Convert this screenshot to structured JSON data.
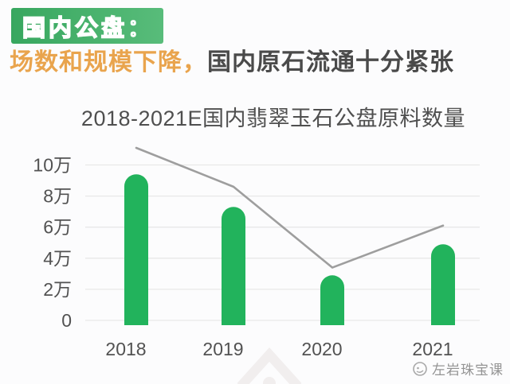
{
  "badge": {
    "label": "国内公盘："
  },
  "headline": {
    "highlight": "场数和规模下降，",
    "rest": "国内原石流通十分紧张",
    "highlight_color": "#e9a44d",
    "rest_color": "#4a4a4a"
  },
  "chart_data": {
    "type": "bar",
    "title": "2018-2021E国内翡翠玉石公盘原料数量",
    "categories": [
      "2018",
      "2019",
      "2020",
      "2021"
    ],
    "series": [
      {
        "name": "bars",
        "type": "bar",
        "values": [
          9.4,
          7.3,
          2.9,
          4.9
        ],
        "unit": "万"
      },
      {
        "name": "trend-line",
        "type": "line",
        "values": [
          11.1,
          8.6,
          3.4,
          6.1
        ],
        "unit": "万"
      }
    ],
    "yticks": [
      {
        "v": 0,
        "label": "0"
      },
      {
        "v": 2,
        "label": "2万"
      },
      {
        "v": 4,
        "label": "4万"
      },
      {
        "v": 6,
        "label": "6万"
      },
      {
        "v": 8,
        "label": "8万"
      },
      {
        "v": 10,
        "label": "10万"
      }
    ],
    "ylim": [
      0,
      11.5
    ],
    "grid": true,
    "legend": "none",
    "colors": {
      "bar": "#22b35c",
      "line": "#9e9e9e",
      "grid": "#e8e8e8",
      "axis_label": "#525252",
      "watermark": "#f1eeee"
    }
  },
  "watermark": {
    "text": "左岩珠宝课",
    "icon": "circle-logo-icon"
  }
}
